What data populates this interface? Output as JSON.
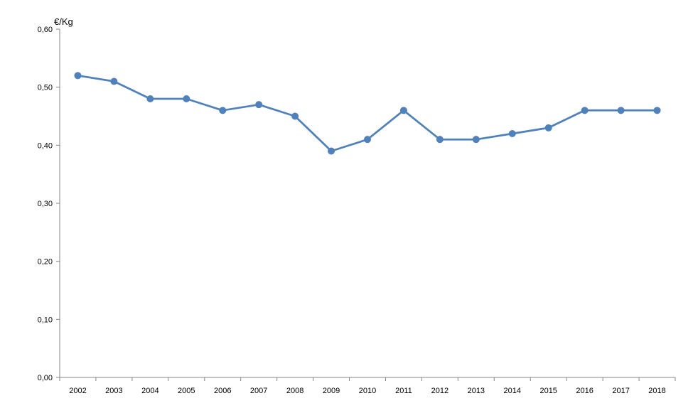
{
  "chart_data": {
    "type": "line",
    "title": "",
    "xlabel": "",
    "ylabel": "€/Kg",
    "categories": [
      "2002",
      "2003",
      "2004",
      "2005",
      "2006",
      "2007",
      "2008",
      "2009",
      "2010",
      "2011",
      "2012",
      "2013",
      "2014",
      "2015",
      "2016",
      "2017",
      "2018"
    ],
    "series": [
      {
        "values": [
          0.52,
          0.51,
          0.48,
          0.48,
          0.46,
          0.47,
          0.45,
          0.39,
          0.41,
          0.46,
          0.41,
          0.41,
          0.42,
          0.43,
          0.46,
          0.46,
          0.46
        ],
        "color": "#4f81bd"
      }
    ],
    "ylim": [
      0,
      0.6
    ],
    "yticks": [
      0,
      0.1,
      0.2,
      0.3,
      0.4,
      0.5,
      0.6
    ],
    "ytick_labels": [
      "0,00",
      "0,10",
      "0,20",
      "0,30",
      "0,40",
      "0,50",
      "0,60"
    ],
    "grid": false,
    "legend": "none"
  }
}
